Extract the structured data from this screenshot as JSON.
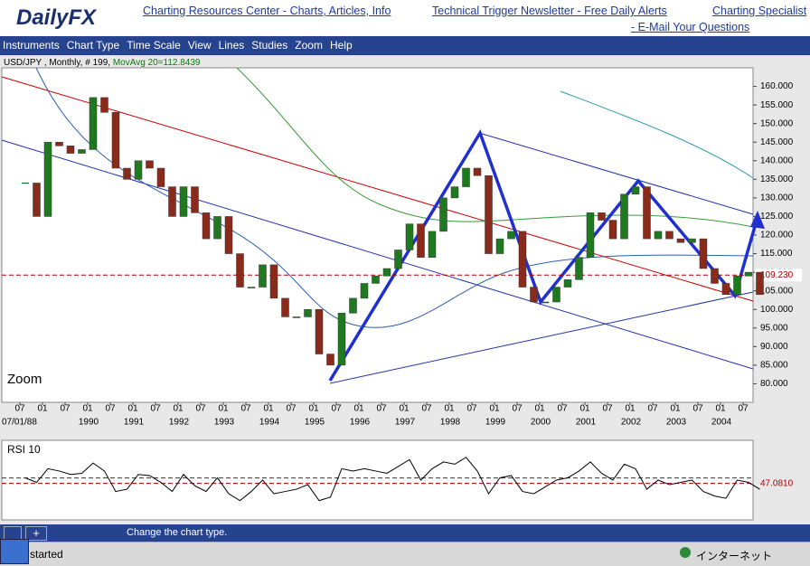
{
  "header": {
    "logo": "DailyFX",
    "links": [
      "Charting Resources Center - Charts, Articles, Info",
      "Technical Trigger Newsletter - Free Daily Alerts",
      "Charting Specialist",
      "- E-Mail Your Questions"
    ]
  },
  "menu": [
    "Instruments",
    "Chart Type",
    "Time Scale",
    "View",
    "Lines",
    "Studies",
    "Zoom",
    "Help"
  ],
  "chart_data": {
    "type": "candlestick",
    "symbol": "USD/JPY ,",
    "period": "Monthly,",
    "bar_count_label": "# 199,",
    "moving_average_label": "MovAvg 20=112.8439",
    "zoom_label": "Zoom",
    "closes": [
      134,
      125,
      145,
      144,
      142,
      143,
      157,
      153,
      138,
      135,
      140,
      138,
      133,
      125,
      133,
      126,
      119,
      125,
      115,
      106,
      106,
      112,
      103,
      98,
      98,
      100,
      88,
      85,
      99,
      103,
      107,
      109,
      111,
      116,
      123,
      114,
      121,
      130,
      133,
      138,
      136,
      115,
      119,
      121,
      106,
      102,
      102,
      106,
      108,
      114,
      126,
      124,
      119,
      131,
      133,
      119,
      121,
      119,
      118,
      119,
      111,
      107,
      104,
      109,
      110,
      104
    ],
    "ylim": [
      75,
      165
    ],
    "yticks": [
      {
        "value": 80,
        "label": "80.000"
      },
      {
        "value": 85,
        "label": "85.000"
      },
      {
        "value": 90,
        "label": "90.000"
      },
      {
        "value": 95,
        "label": "95.000"
      },
      {
        "value": 100,
        "label": "100.000"
      },
      {
        "value": 105,
        "label": "105.000"
      },
      {
        "value": 110,
        "label": "110.000"
      },
      {
        "value": 115,
        "label": "115.000"
      },
      {
        "value": 120,
        "label": "120.000"
      },
      {
        "value": 125,
        "label": "125.000"
      },
      {
        "value": 130,
        "label": "130.000"
      },
      {
        "value": 135,
        "label": "135.000"
      },
      {
        "value": 140,
        "label": "140.000"
      },
      {
        "value": 145,
        "label": "145.000"
      },
      {
        "value": 150,
        "label": "150.000"
      },
      {
        "value": 155,
        "label": "155.000"
      },
      {
        "value": 160,
        "label": "160.000"
      }
    ],
    "last_price": {
      "value": 109.23,
      "label": "109.230"
    },
    "month_labels": [
      "07",
      "01",
      "07",
      "01",
      "07",
      "01",
      "07",
      "01",
      "07",
      "01",
      "07",
      "01",
      "07",
      "01",
      "07",
      "01",
      "07",
      "01",
      "07",
      "01",
      "07",
      "01",
      "07",
      "01",
      "07",
      "01",
      "07",
      "01",
      "07",
      "01",
      "07",
      "01",
      "07"
    ],
    "start_date_label": "07/01/88",
    "year_labels": [
      "1990",
      "1991",
      "1992",
      "1993",
      "1994",
      "1995",
      "1996",
      "1997",
      "1998",
      "1999",
      "2000",
      "2001",
      "2002",
      "2003",
      "2004"
    ]
  },
  "rsi": {
    "title": "RSI 10",
    "values": [
      52,
      48,
      60,
      58,
      55,
      56,
      65,
      58,
      40,
      42,
      55,
      54,
      48,
      40,
      55,
      45,
      40,
      52,
      38,
      32,
      40,
      50,
      38,
      40,
      42,
      46,
      32,
      35,
      60,
      58,
      60,
      58,
      56,
      62,
      68,
      50,
      60,
      66,
      64,
      70,
      58,
      38,
      52,
      54,
      40,
      38,
      44,
      50,
      52,
      58,
      66,
      56,
      50,
      64,
      60,
      42,
      50,
      46,
      48,
      50,
      40,
      36,
      34,
      50,
      48,
      42
    ],
    "ylim": [
      15,
      85
    ],
    "level": {
      "value": 47.081,
      "label": "47.0810"
    }
  },
  "status_bar": "Change the chart type.",
  "taskbar": {
    "start": "started",
    "zone": "インターネット"
  }
}
